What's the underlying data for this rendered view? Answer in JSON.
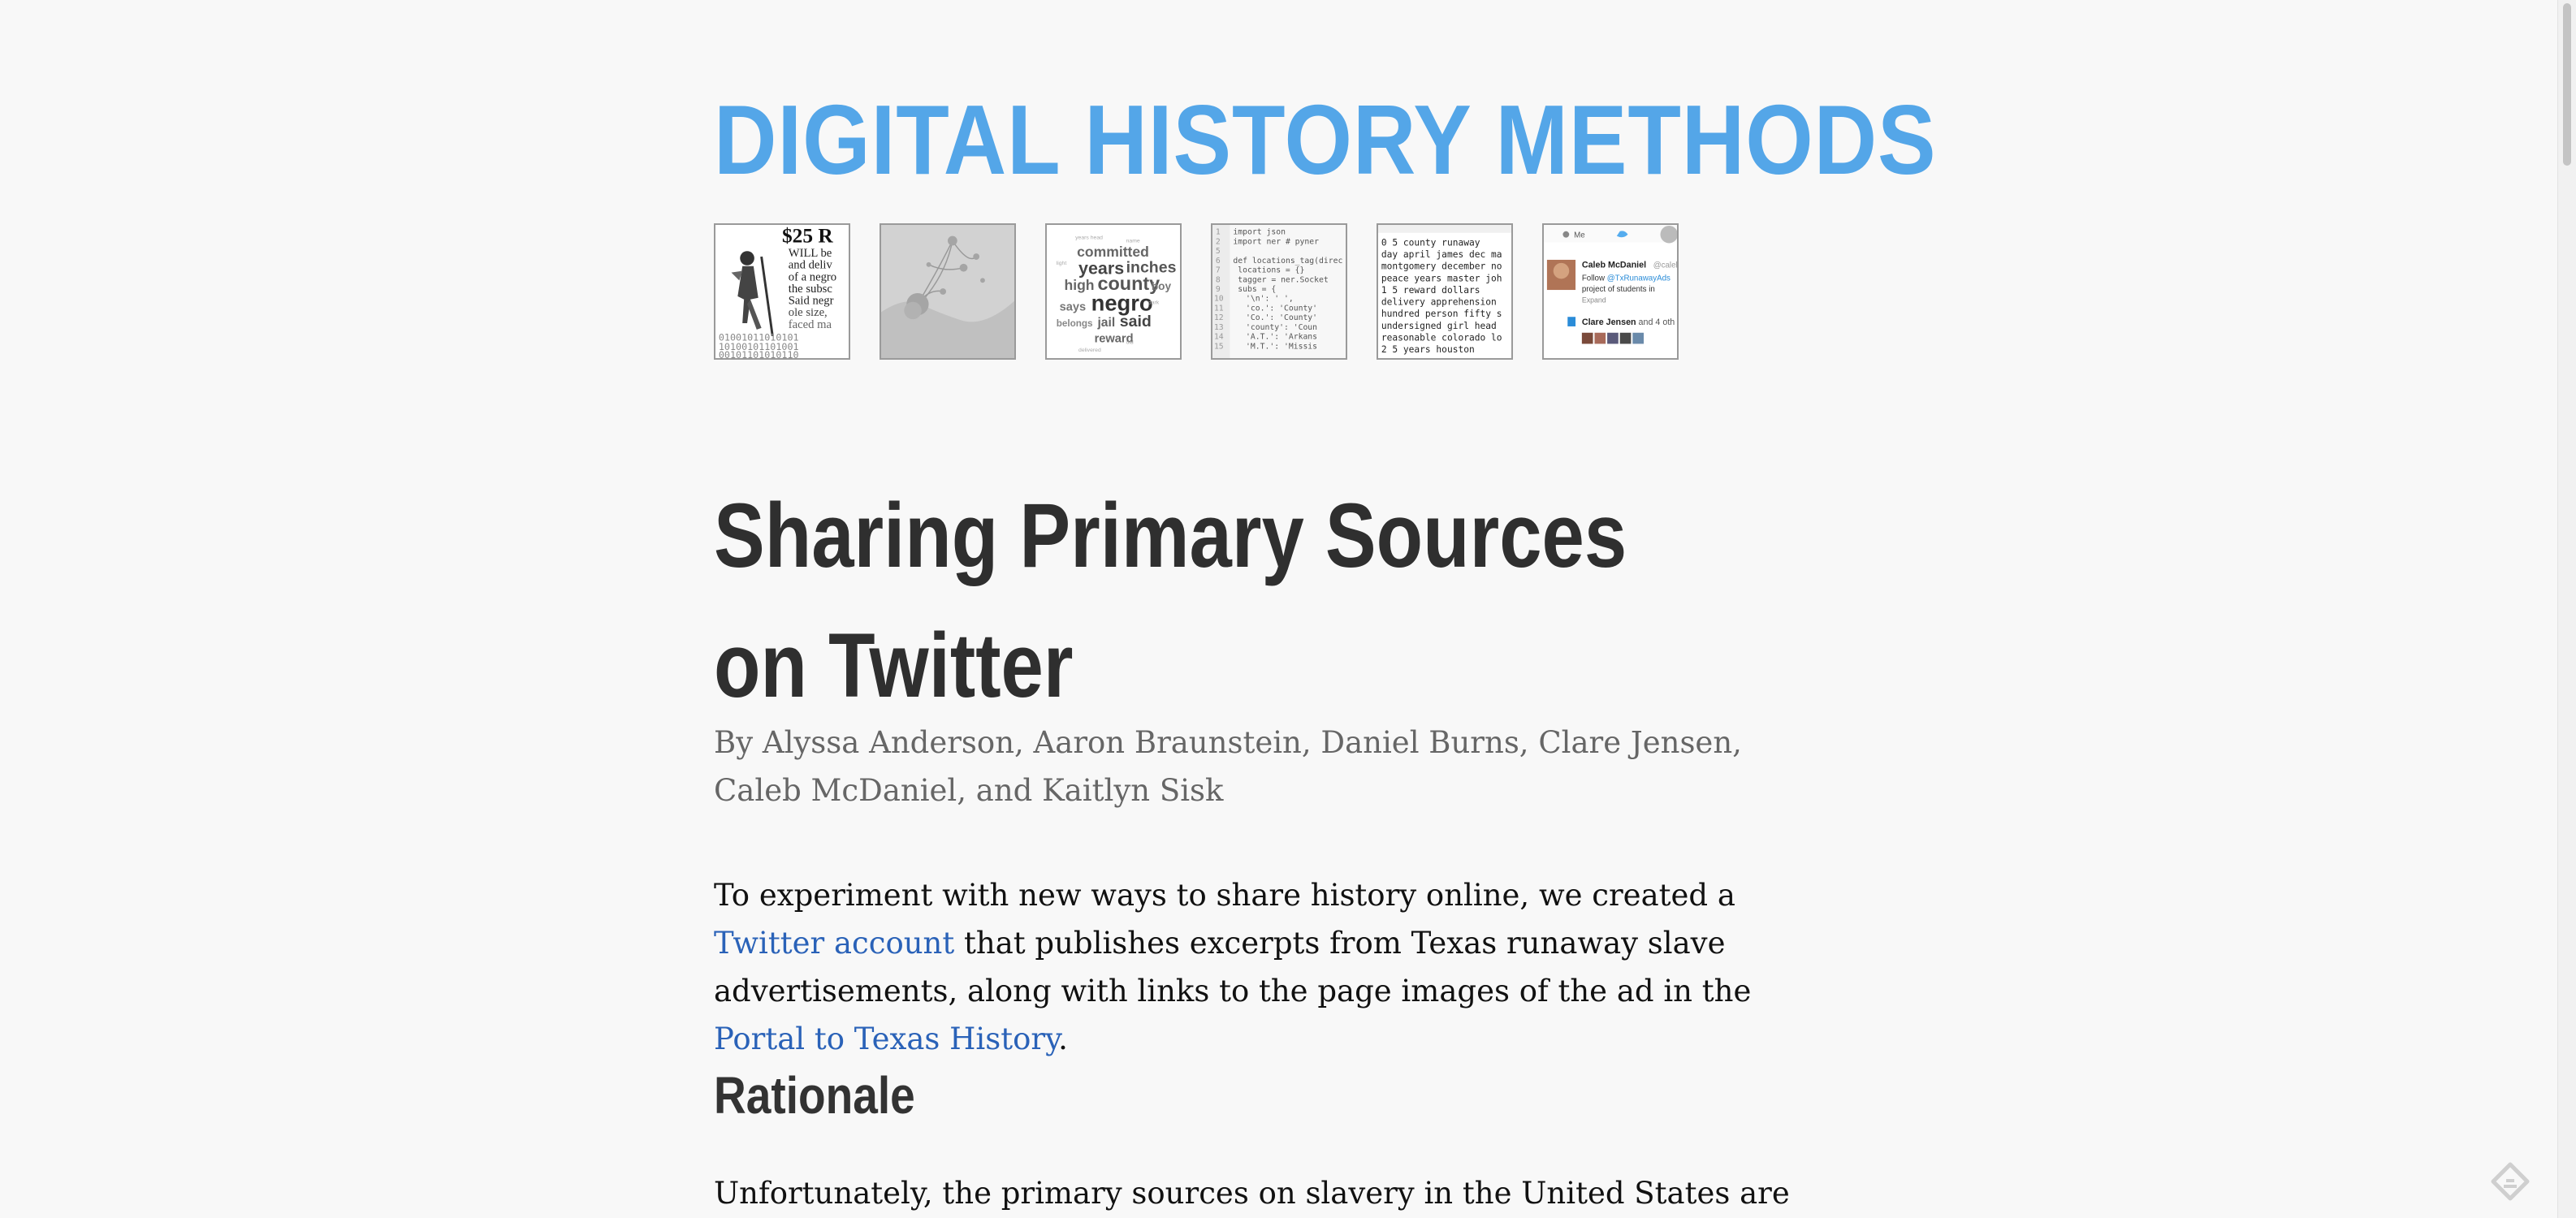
{
  "site": {
    "title": "DIGITAL HISTORY METHODS"
  },
  "thumbnails": [
    {
      "name": "runaway ad illustration",
      "text": "$25 R WILL be and deliv of a negro the subsc Said negr ole size, faced ma"
    },
    {
      "name": "network map"
    },
    {
      "name": "word cloud",
      "words": [
        "years",
        "committed",
        "inches",
        "high",
        "county",
        "negro",
        "says",
        "jail",
        "said",
        "reward",
        "belongs",
        "boy"
      ]
    },
    {
      "name": "python code",
      "lines": [
        "import json",
        "import ner  # pyner",
        "",
        "def locations_tag(direc",
        "  locations = {}",
        "  tagger = ner.Socket",
        "  subs = {",
        "    '\\n': ' ',",
        "    'co.': 'County'",
        "    'Co.': 'County'",
        "    'county': 'Coun",
        "    'A.T.': 'Arkans"
      ]
    },
    {
      "name": "data table",
      "lines": [
        "0   5   county runaway",
        "day april james dec ma",
        "montgomery december no",
        "peace years master joh",
        "1   5   reward dollars",
        "delivery apprehension",
        "hundred person fifty s",
        "undersigned girl head",
        "reasonable colorado lo",
        "2   5   years houston"
      ]
    },
    {
      "name": "twitter profile",
      "me": "Me",
      "user": "Caleb McDaniel",
      "handle": "@calebmcd",
      "follow": "Follow @TxRunawayAds",
      "project": "project of students in",
      "expand": "Expand",
      "user2": "Clare Jensen",
      "others": "and 4 oth"
    }
  ],
  "post": {
    "title": "Sharing Primary Sources on Twitter",
    "byline": "By Alyssa Anderson, Aaron Braunstein, Daniel Burns, Clare Jensen, Caleb McDaniel, and Kaitlyn Sisk",
    "p1_before": "To experiment with new ways to share history online, we created a ",
    "p1_link1": "Twitter account",
    "p1_middle": " that publishes excerpts from Texas runaway slave advertisements, along with links to the page images of the ad in the ",
    "p1_link2": "Portal to Texas History",
    "p1_after": ".",
    "section_heading": "Rationale",
    "p2": "Unfortunately, the primary sources on slavery in the United States are limited."
  },
  "colors": {
    "background": "#f8f8f8",
    "site_title": "#54a6e8",
    "link": "#2a62b8",
    "heading": "#2f2f2f"
  },
  "icons": {
    "feedly": "feedly-icon"
  }
}
